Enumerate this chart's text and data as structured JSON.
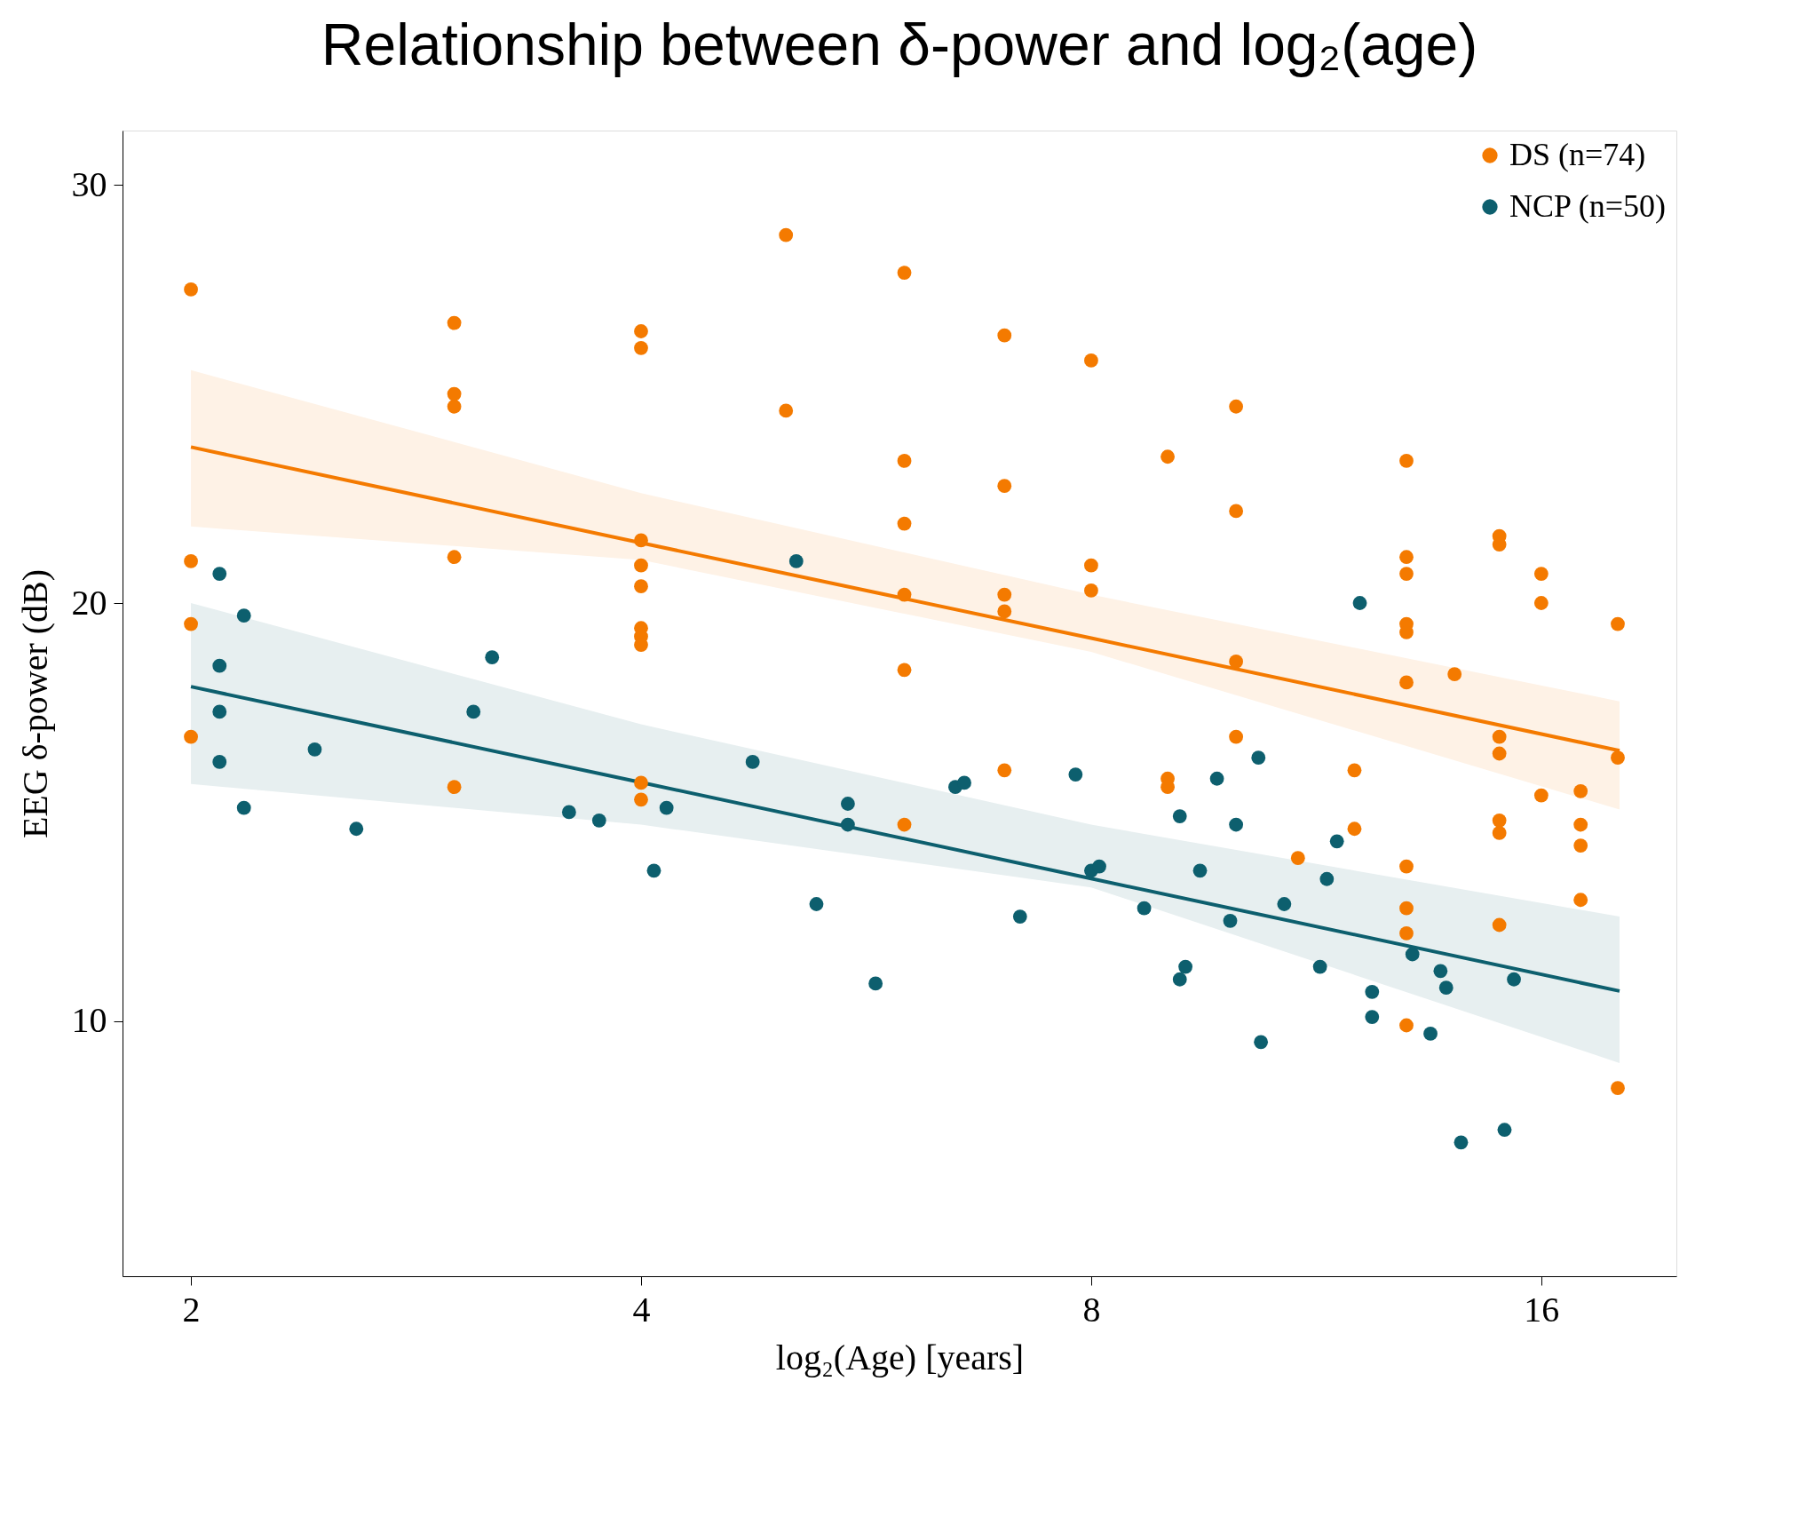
{
  "chart_data": {
    "type": "scatter",
    "title": "Relationship between δ-power and log₂(age)",
    "xlabel": "log₂(Age) [years]",
    "ylabel": "EEG δ-power (dB)",
    "log": "x",
    "xlim": [
      1.8,
      19.7
    ],
    "xticks": [
      2,
      4,
      8,
      16
    ],
    "ylim": [
      3.9,
      31.3
    ],
    "yticks": [
      10,
      20,
      30
    ],
    "grid": false,
    "legend": "top right",
    "marker": "circle",
    "series": [
      {
        "type": "scatter",
        "name": "DS (n=74)",
        "color": "#f47a00",
        "x": [
          2,
          2,
          2,
          2,
          3.0,
          3.0,
          3.0,
          3.0,
          3.0,
          4,
          4,
          4,
          4,
          4,
          4,
          4,
          4,
          4,
          4,
          5.0,
          5.0,
          6.0,
          6.0,
          6.0,
          6.0,
          6.0,
          6.0,
          7.0,
          7.0,
          7.0,
          7.0,
          7.0,
          8,
          8,
          8,
          9.0,
          9.0,
          9.0,
          10.0,
          10.0,
          10.0,
          10.0,
          11.0,
          12.0,
          12.0,
          13,
          13,
          13,
          13,
          13,
          13,
          13,
          13,
          13,
          13,
          14,
          15,
          15,
          15,
          15,
          15,
          15,
          15,
          16,
          16,
          16,
          17,
          17,
          17,
          17,
          18,
          18,
          18
        ],
        "values": [
          27.5,
          21.0,
          19.5,
          16.8,
          26.7,
          25.0,
          24.7,
          21.1,
          15.6,
          26.5,
          26.1,
          21.5,
          20.9,
          20.4,
          19.4,
          19.2,
          19.0,
          15.7,
          15.3,
          28.8,
          24.6,
          27.9,
          23.4,
          21.9,
          20.2,
          18.4,
          14.7,
          26.4,
          22.8,
          20.2,
          19.8,
          16.0,
          25.8,
          20.9,
          20.3,
          23.5,
          15.8,
          15.6,
          24.7,
          22.2,
          18.6,
          16.8,
          13.9,
          16.0,
          14.6,
          23.4,
          21.1,
          20.7,
          19.5,
          19.3,
          18.1,
          13.7,
          12.7,
          12.1,
          9.9,
          18.3,
          21.6,
          21.4,
          16.8,
          16.4,
          14.8,
          14.5,
          12.3,
          20.7,
          20.0,
          15.4,
          15.5,
          14.7,
          14.2,
          12.9,
          19.5,
          16.3,
          8.4
        ]
      },
      {
        "type": "scatter",
        "name": "NCP (n=50)",
        "color": "#0d5f6e",
        "x": [
          2.09,
          2.09,
          2.09,
          2.09,
          2.17,
          2.17,
          2.42,
          2.58,
          3.09,
          3.18,
          3.58,
          3.75,
          4.16,
          4.08,
          4.75,
          5.08,
          5.24,
          5.5,
          5.5,
          5.74,
          6.49,
          6.58,
          7.17,
          7.81,
          8.0,
          8.1,
          8.68,
          9.17,
          9.17,
          9.25,
          9.46,
          9.71,
          9.91,
          10.0,
          10.35,
          10.39,
          10.77,
          11.38,
          11.5,
          11.68,
          12.1,
          12.33,
          12.33,
          13.12,
          13.49,
          13.7,
          13.82,
          14.14,
          15.12,
          15.34
        ],
        "values": [
          20.7,
          18.5,
          17.4,
          16.2,
          19.7,
          15.1,
          16.5,
          14.6,
          17.4,
          18.7,
          15.0,
          14.8,
          15.1,
          13.6,
          16.2,
          21.0,
          12.8,
          15.2,
          14.7,
          10.9,
          15.6,
          15.7,
          12.5,
          15.9,
          13.6,
          13.7,
          12.7,
          14.9,
          11.0,
          11.3,
          13.6,
          15.8,
          12.4,
          14.7,
          16.3,
          9.5,
          12.8,
          11.3,
          13.4,
          14.3,
          20.0,
          10.7,
          10.1,
          11.6,
          9.7,
          11.2,
          10.8,
          7.1,
          7.4,
          11.0
        ]
      },
      {
        "type": "line",
        "marker": "none",
        "color": "#f47a00",
        "x": [
          2,
          4,
          8,
          18.05
        ],
        "values": [
          23.73,
          21.44,
          19.16,
          16.47
        ],
        "lower": [
          21.83,
          21.03,
          18.83,
          15.06
        ],
        "upper": [
          25.57,
          22.63,
          20.2,
          17.65
        ]
      },
      {
        "type": "line",
        "marker": "none",
        "color": "#0d5f6e",
        "x": [
          2,
          4,
          8,
          18.05
        ],
        "values": [
          18.0,
          15.71,
          13.41,
          10.72
        ],
        "lower": [
          15.67,
          14.7,
          13.2,
          9.0
        ],
        "upper": [
          20.0,
          17.1,
          14.7,
          12.5
        ]
      }
    ]
  }
}
